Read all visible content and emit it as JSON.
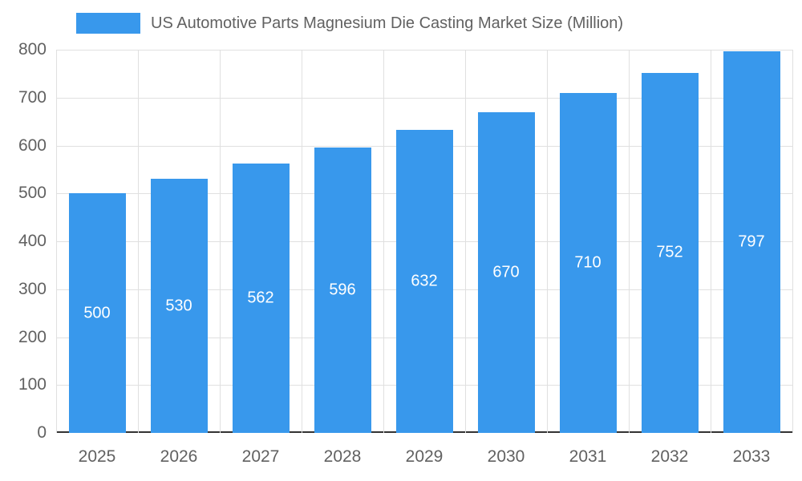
{
  "legend": {
    "label": "US Automotive Parts Magnesium Die Casting Market Size (Million)"
  },
  "chart_data": {
    "type": "bar",
    "title": "US Automotive Parts Magnesium Die Casting Market Size (Million)",
    "categories": [
      "2025",
      "2026",
      "2027",
      "2028",
      "2029",
      "2030",
      "2031",
      "2032",
      "2033"
    ],
    "values": [
      500,
      530,
      562,
      596,
      632,
      670,
      710,
      752,
      797
    ],
    "xlabel": "",
    "ylabel": "",
    "ylim": [
      0,
      800
    ],
    "ytick_step": 100,
    "grid": true,
    "legend_position": "top-left",
    "colors": {
      "bar": "#3898ec",
      "value_label": "#ffffff",
      "axis_text": "#616161",
      "gridline": "#e0e0e0",
      "baseline": "#333333",
      "background": "#ffffff"
    }
  }
}
